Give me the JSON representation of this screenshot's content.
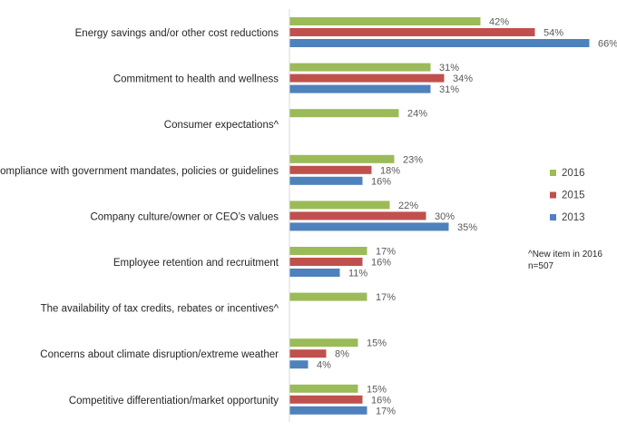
{
  "chart_data": {
    "type": "bar",
    "orientation": "horizontal",
    "categories": [
      "Energy savings and/or other cost reductions",
      "Commitment to health and wellness",
      "Consumer expectations^",
      "Compliance with government mandates, policies or guidelines",
      "Company culture/owner or CEO’s values",
      "Employee retention and recruitment",
      "The availability of tax credits, rebates or incentives^",
      "Concerns about climate disruption/extreme weather",
      "Competitive differentiation/market opportunity"
    ],
    "series": [
      {
        "name": "2016",
        "color": "#9BBB59",
        "values": [
          42,
          31,
          24,
          23,
          22,
          17,
          17,
          15,
          15
        ]
      },
      {
        "name": "2015",
        "color": "#C0504D",
        "values": [
          54,
          34,
          null,
          18,
          30,
          16,
          null,
          8,
          16
        ]
      },
      {
        "name": "2013",
        "color": "#4F81BD",
        "values": [
          66,
          31,
          null,
          16,
          35,
          11,
          null,
          4,
          17
        ]
      }
    ],
    "value_format": "%",
    "xlim": [
      0,
      70
    ],
    "grid": false,
    "legend_placement": "right",
    "annotations": [
      "^New item in 2016",
      "n=507"
    ]
  }
}
